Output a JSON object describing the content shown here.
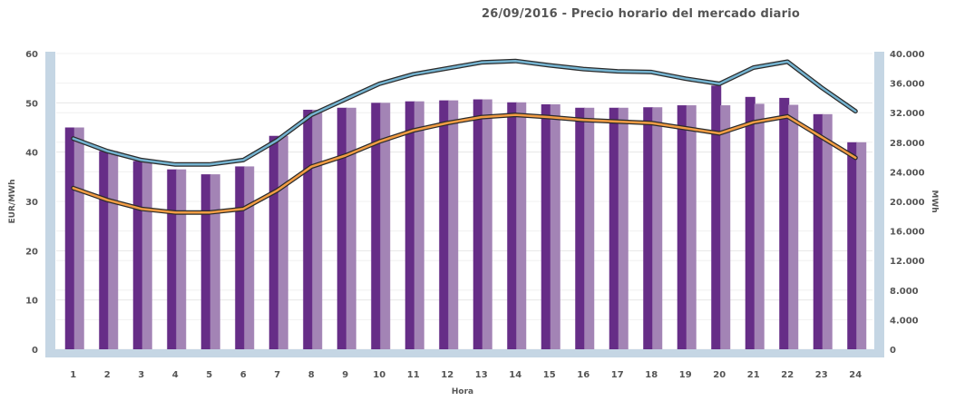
{
  "chart_data": {
    "type": "bar",
    "title": "26/09/2016 - Precio horario del mercado diario",
    "xlabel": "Hora",
    "ylabel_left": "EUR/MWh",
    "ylabel_right": "MWh",
    "categories": [
      "1",
      "2",
      "3",
      "4",
      "5",
      "6",
      "7",
      "8",
      "9",
      "10",
      "11",
      "12",
      "13",
      "14",
      "15",
      "16",
      "17",
      "18",
      "19",
      "20",
      "21",
      "22",
      "23",
      "24"
    ],
    "ylim_left": [
      0,
      60
    ],
    "ylim_right": [
      0,
      40000
    ],
    "yticks_left": [
      "0",
      "10",
      "20",
      "30",
      "40",
      "50",
      "60"
    ],
    "yticks_right": [
      "0",
      "4.000",
      "8.000",
      "12.000",
      "16.000",
      "20.000",
      "24.000",
      "28.000",
      "32.000",
      "36.000",
      "40.000"
    ],
    "grid": true,
    "legend": "none",
    "series": [
      {
        "kind": "bar",
        "axis": "left",
        "color": "#662d87",
        "values": [
          45.0,
          40.2,
          38.2,
          36.5,
          35.5,
          37.1,
          43.3,
          48.6,
          49.0,
          50.0,
          50.3,
          50.5,
          50.7,
          50.1,
          49.7,
          49.0,
          49.0,
          49.1,
          49.5,
          53.5,
          51.2,
          51.0,
          47.7,
          42.0
        ]
      },
      {
        "kind": "bar",
        "axis": "left",
        "color": "#a384b5",
        "values": [
          45.0,
          40.2,
          38.2,
          36.5,
          35.5,
          37.1,
          43.3,
          48.6,
          49.0,
          50.0,
          50.3,
          50.5,
          50.7,
          50.1,
          49.7,
          49.0,
          49.0,
          49.1,
          49.5,
          49.5,
          49.8,
          49.6,
          47.7,
          42.0
        ]
      },
      {
        "kind": "line",
        "axis": "right",
        "color": "#74b3d0",
        "values": [
          28500,
          26800,
          25600,
          25000,
          25000,
          25600,
          28300,
          31700,
          33800,
          35900,
          37200,
          38000,
          38800,
          39000,
          38400,
          37900,
          37600,
          37500,
          36600,
          35900,
          38100,
          38900,
          35400,
          32200
        ]
      },
      {
        "kind": "line",
        "axis": "right",
        "color": "#f29d44",
        "values": [
          21800,
          20200,
          19000,
          18500,
          18500,
          19000,
          21500,
          24700,
          26200,
          28100,
          29600,
          30600,
          31400,
          31700,
          31400,
          31000,
          30800,
          30600,
          29900,
          29200,
          30700,
          31500,
          28700,
          25900
        ]
      }
    ]
  }
}
